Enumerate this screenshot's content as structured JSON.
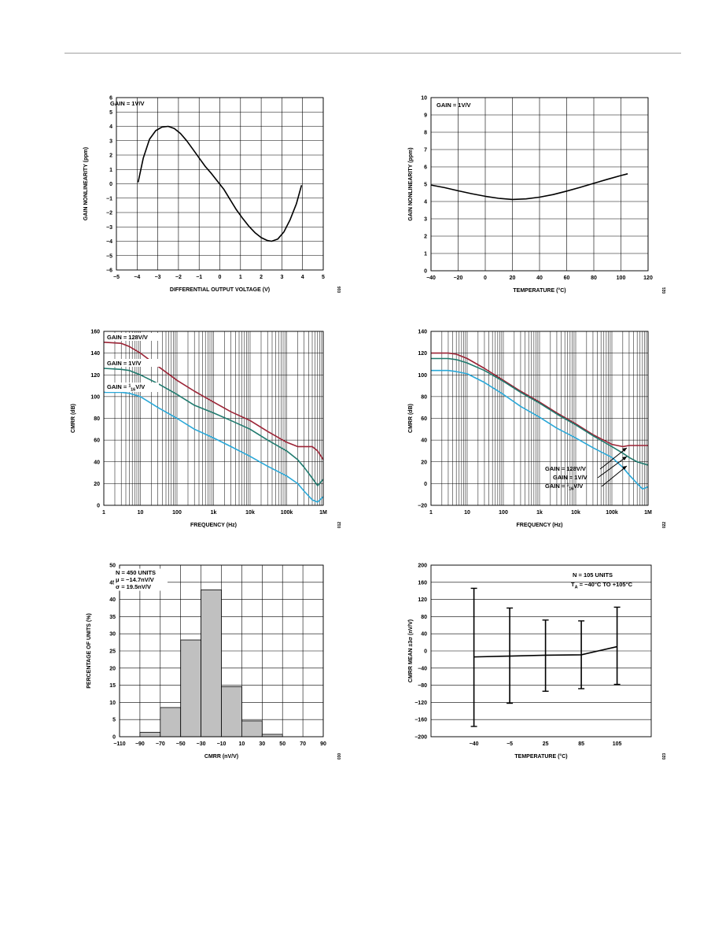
{
  "page": {
    "rule_color": "#a0a0a0"
  },
  "chart_data": [
    {
      "id": "c1",
      "type": "line",
      "xlabel": "DIFFERENTIAL OUTPUT VOLTAGE (V)",
      "ylabel": "GAIN NONLINEARITY (ppm)",
      "xlim": [
        -5,
        5
      ],
      "ylim": [
        -6,
        6
      ],
      "xscale": "linear",
      "grid": true,
      "xticks": [
        "−5",
        "−4",
        "−3",
        "−2",
        "−1",
        "0",
        "1",
        "2",
        "3",
        "4",
        "5"
      ],
      "yticks": [
        "−6",
        "−5",
        "−4",
        "−3",
        "−2",
        "−1",
        "0",
        "1",
        "2",
        "3",
        "4",
        "5",
        "6"
      ],
      "annotations": [
        "GAIN = 1V/V"
      ],
      "side_label": "016",
      "series": [
        {
          "color": "#000000",
          "x": [
            -3.95,
            -3.7,
            -3.4,
            -3.1,
            -2.8,
            -2.5,
            -2.2,
            -1.9,
            -1.6,
            -1.3,
            -1.0,
            -0.7,
            -0.4,
            -0.1,
            0.2,
            0.5,
            0.8,
            1.1,
            1.4,
            1.7,
            2.0,
            2.3,
            2.5,
            2.8,
            3.1,
            3.4,
            3.7,
            3.95
          ],
          "y": [
            0.1,
            1.8,
            3.1,
            3.7,
            3.95,
            4.0,
            3.85,
            3.5,
            3.0,
            2.4,
            1.8,
            1.2,
            0.7,
            0.15,
            -0.4,
            -1.1,
            -1.8,
            -2.4,
            -2.95,
            -3.4,
            -3.75,
            -3.95,
            -4.0,
            -3.85,
            -3.35,
            -2.5,
            -1.4,
            -0.1
          ]
        }
      ]
    },
    {
      "id": "c2",
      "type": "line",
      "xlabel": "TEMPERATURE (°C)",
      "ylabel": "GAIN NONLINEARITY (ppm)",
      "xlim": [
        -40,
        120
      ],
      "ylim": [
        0,
        10
      ],
      "xscale": "linear",
      "grid": true,
      "xticks": [
        "−40",
        "−20",
        "0",
        "20",
        "40",
        "60",
        "80",
        "100",
        "120"
      ],
      "yticks": [
        "0",
        "1",
        "2",
        "3",
        "4",
        "5",
        "6",
        "7",
        "8",
        "9",
        "10"
      ],
      "annotations": [
        "GAIN = 1V/V"
      ],
      "side_label": "021",
      "series": [
        {
          "color": "#000000",
          "x": [
            -40,
            -30,
            -20,
            -10,
            0,
            10,
            20,
            30,
            40,
            50,
            60,
            70,
            80,
            90,
            100,
            105
          ],
          "y": [
            4.95,
            4.8,
            4.62,
            4.45,
            4.3,
            4.18,
            4.12,
            4.15,
            4.25,
            4.4,
            4.6,
            4.82,
            5.05,
            5.28,
            5.5,
            5.6
          ]
        }
      ]
    },
    {
      "id": "c3",
      "type": "line",
      "xlabel": "FREQUENCY (Hz)",
      "ylabel": "CMRR (dB)",
      "xlim": [
        1,
        1000000
      ],
      "ylim": [
        0,
        160
      ],
      "xscale": "log",
      "grid": true,
      "xticks": [
        "1",
        "10",
        "100",
        "1k",
        "10k",
        "100k",
        "1M"
      ],
      "yticks": [
        "0",
        "20",
        "40",
        "60",
        "80",
        "100",
        "120",
        "140",
        "160"
      ],
      "annotations": [
        "GAIN = 128V/V",
        "GAIN = 1V/V",
        "GAIN = ",
        "1",
        "16",
        "V/V"
      ],
      "side_label": "012",
      "series": [
        {
          "name": "GAIN = 128V/V",
          "color": "#9b2335",
          "x": [
            1,
            3,
            5,
            10,
            30,
            100,
            300,
            1000,
            3000,
            10000,
            30000,
            100000,
            200000,
            300000,
            500000,
            700000,
            1000000
          ],
          "y": [
            150,
            149,
            146,
            140,
            128,
            115,
            105,
            95,
            86,
            78,
            68,
            58,
            54,
            54,
            54,
            50,
            42
          ]
        },
        {
          "name": "GAIN = 1V/V",
          "color": "#1f7a6e",
          "x": [
            1,
            3,
            5,
            10,
            30,
            100,
            300,
            1000,
            3000,
            10000,
            30000,
            100000,
            200000,
            300000,
            500000,
            700000,
            1000000
          ],
          "y": [
            126,
            125,
            124,
            120,
            112,
            102,
            92,
            85,
            78,
            70,
            60,
            50,
            42,
            35,
            25,
            18,
            24
          ]
        },
        {
          "name": "GAIN = 1/16V/V",
          "color": "#2aa8d8",
          "x": [
            1,
            3,
            5,
            10,
            30,
            100,
            300,
            1000,
            3000,
            10000,
            30000,
            100000,
            200000,
            300000,
            500000,
            700000,
            1000000
          ],
          "y": [
            104,
            104,
            103,
            100,
            90,
            80,
            70,
            62,
            54,
            45,
            36,
            27,
            20,
            13,
            5,
            3,
            8
          ]
        }
      ]
    },
    {
      "id": "c4",
      "type": "line",
      "xlabel": "FREQUENCY (Hz)",
      "ylabel": "CMRR (dB)",
      "xlim": [
        1,
        1000000
      ],
      "ylim": [
        -20,
        140
      ],
      "xscale": "log",
      "grid": true,
      "xticks": [
        "1",
        "10",
        "100",
        "1k",
        "10k",
        "100k",
        "1M"
      ],
      "yticks": [
        "−20",
        "0",
        "20",
        "40",
        "60",
        "80",
        "100",
        "120",
        "140"
      ],
      "annotations": [
        "GAIN = 128V/V",
        "GAIN = 1V/V",
        "GAIN = ",
        "1",
        "16",
        "V/V"
      ],
      "side_label": "022",
      "series": [
        {
          "name": "GAIN = 128V/V",
          "color": "#9b2335",
          "x": [
            1,
            3,
            5,
            10,
            30,
            100,
            300,
            1000,
            3000,
            10000,
            30000,
            100000,
            200000,
            300000,
            500000,
            1000000
          ],
          "y": [
            120,
            120,
            119,
            115,
            106,
            95,
            85,
            75,
            65,
            55,
            45,
            36,
            34,
            35,
            35,
            35
          ]
        },
        {
          "name": "GAIN = 1V/V",
          "color": "#1f7a6e",
          "x": [
            1,
            3,
            5,
            10,
            30,
            100,
            300,
            1000,
            3000,
            10000,
            30000,
            100000,
            200000,
            300000,
            500000,
            1000000
          ],
          "y": [
            115,
            115,
            114,
            111,
            104,
            94,
            84,
            74,
            64,
            54,
            44,
            34,
            28,
            24,
            20,
            17
          ]
        },
        {
          "name": "GAIN = 1/16V/V",
          "color": "#2aa8d8",
          "x": [
            1,
            3,
            5,
            10,
            30,
            100,
            300,
            1000,
            3000,
            10000,
            30000,
            100000,
            200000,
            300000,
            500000,
            700000,
            1000000
          ],
          "y": [
            104,
            104,
            103,
            101,
            93,
            82,
            71,
            61,
            51,
            42,
            33,
            24,
            15,
            8,
            0,
            -5,
            -3
          ]
        }
      ]
    },
    {
      "id": "c5",
      "type": "bar",
      "xlabel": "CMRR (nV/V)",
      "ylabel": "PERCENTAGE OF UNITS (%)",
      "xlim": [
        -110,
        90
      ],
      "ylim": [
        0,
        50
      ],
      "xscale": "linear",
      "grid": true,
      "xticks": [
        "−110",
        "−90",
        "−70",
        "−50",
        "−30",
        "−10",
        "10",
        "30",
        "50",
        "70",
        "90"
      ],
      "yticks": [
        "0",
        "5",
        "10",
        "15",
        "20",
        "25",
        "30",
        "35",
        "40",
        "45",
        "50"
      ],
      "annotations": [
        "N = 450 UNITS",
        "μ = −14.7nV/V",
        "σ = 19.5nV/V"
      ],
      "side_label": "030",
      "bar_color": "#c0c0c0",
      "bins": [
        {
          "from": -90,
          "to": -70,
          "value": 1.3
        },
        {
          "from": -70,
          "to": -50,
          "value": 8.5
        },
        {
          "from": -50,
          "to": -30,
          "value": 28.2
        },
        {
          "from": -30,
          "to": -10,
          "value": 42.8
        },
        {
          "from": -10,
          "to": 10,
          "value": 14.6
        },
        {
          "from": 10,
          "to": 30,
          "value": 4.6
        },
        {
          "from": 30,
          "to": 50,
          "value": 0.7
        }
      ]
    },
    {
      "id": "c6",
      "type": "line",
      "xlabel": "TEMPERATURE (°C)",
      "ylabel": "CMRR MEAN ±3σ (nV/V)",
      "ylim": [
        -200,
        200
      ],
      "xscale": "category",
      "grid": true,
      "categories": [
        "−40",
        "−5",
        "25",
        "85",
        "105"
      ],
      "yticks": [
        "−200",
        "−160",
        "−120",
        "−80",
        "−40",
        "0",
        "40",
        "80",
        "120",
        "160",
        "200"
      ],
      "annotations": [
        "N = 105 UNITS",
        "T",
        "A",
        " = −40°C TO +105°C"
      ],
      "side_label": "023",
      "series": [
        {
          "color": "#000000",
          "mean": [
            -14,
            -12,
            -10,
            -9,
            10
          ],
          "upper": [
            146,
            100,
            72,
            70,
            102
          ],
          "lower": [
            -176,
            -122,
            -94,
            -88,
            -78
          ]
        }
      ]
    }
  ]
}
